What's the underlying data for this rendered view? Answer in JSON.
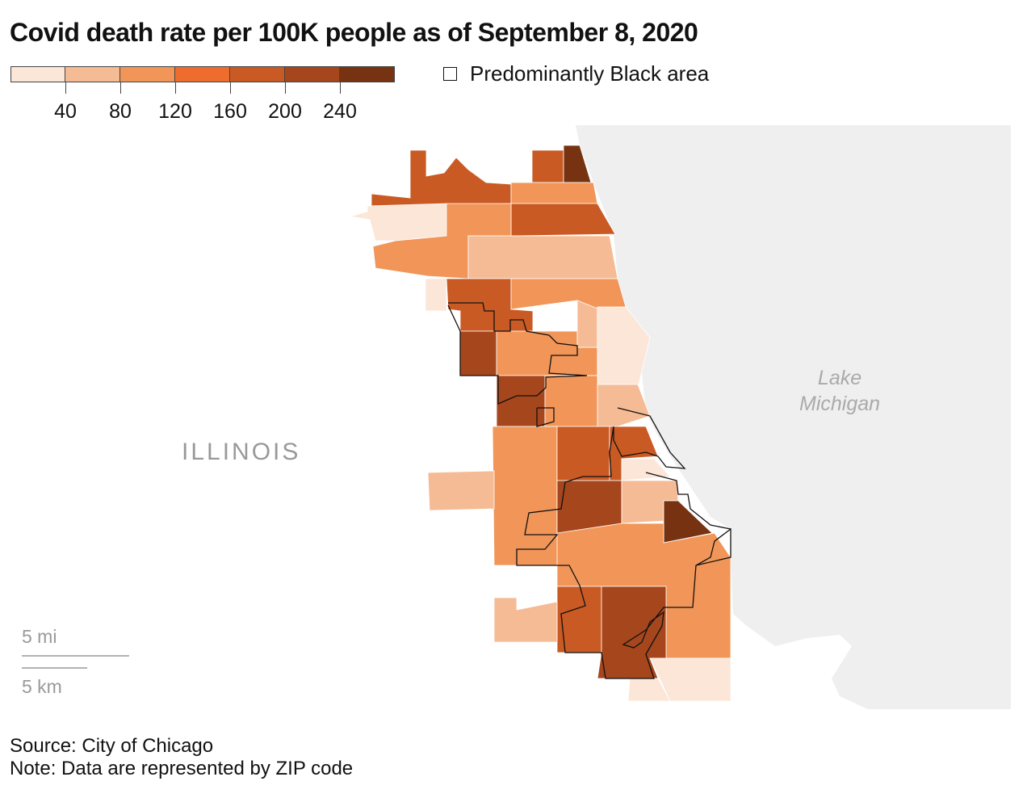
{
  "title": "Covid death rate per 100K people as of September 8, 2020",
  "legend": {
    "colors": [
      "#fbe6d8",
      "#f5bb94",
      "#f19658",
      "#ef6c2f",
      "#c95a24",
      "#a6461d",
      "#773311"
    ],
    "ticks": [
      "40",
      "80",
      "120",
      "160",
      "200",
      "240"
    ],
    "outline_label": "Predominantly Black area"
  },
  "labels": {
    "state": "ILLINOIS",
    "lake_line1": "Lake",
    "lake_line2": "Michigan",
    "scale_mi": "5 mi",
    "scale_km": "5 km"
  },
  "regions": [
    4,
    4,
    6,
    2,
    4,
    0,
    2,
    1,
    0,
    4,
    5,
    2,
    2,
    1,
    0,
    5,
    2,
    1,
    2,
    1,
    4,
    4,
    5,
    0,
    1,
    6,
    2,
    4,
    5,
    1,
    0,
    0
  ],
  "footer": {
    "source": "Source: City of Chicago",
    "note": "Note: Data are represented by ZIP code"
  }
}
